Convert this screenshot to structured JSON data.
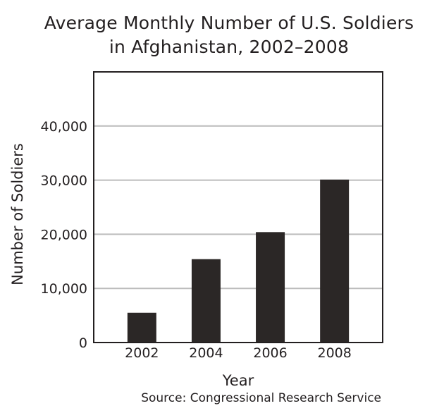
{
  "chart_data": {
    "type": "bar",
    "title_lines": [
      "Average Monthly Number of U.S. Soldiers",
      "in Afghanistan, 2002–2008"
    ],
    "categories": [
      "2002",
      "2004",
      "2006",
      "2008"
    ],
    "values": [
      5500,
      15400,
      20400,
      30100
    ],
    "xlabel": "Year",
    "ylabel": "Number of Soldiers",
    "ylim": [
      0,
      50000
    ],
    "yticks": [
      0,
      10000,
      20000,
      30000,
      40000
    ],
    "ytick_labels": [
      "0",
      "10,000",
      "20,000",
      "30,000",
      "40,000"
    ],
    "grid": "horizontal",
    "bar_color": "#2b2726",
    "source": "Source: Congressional Research Service"
  }
}
